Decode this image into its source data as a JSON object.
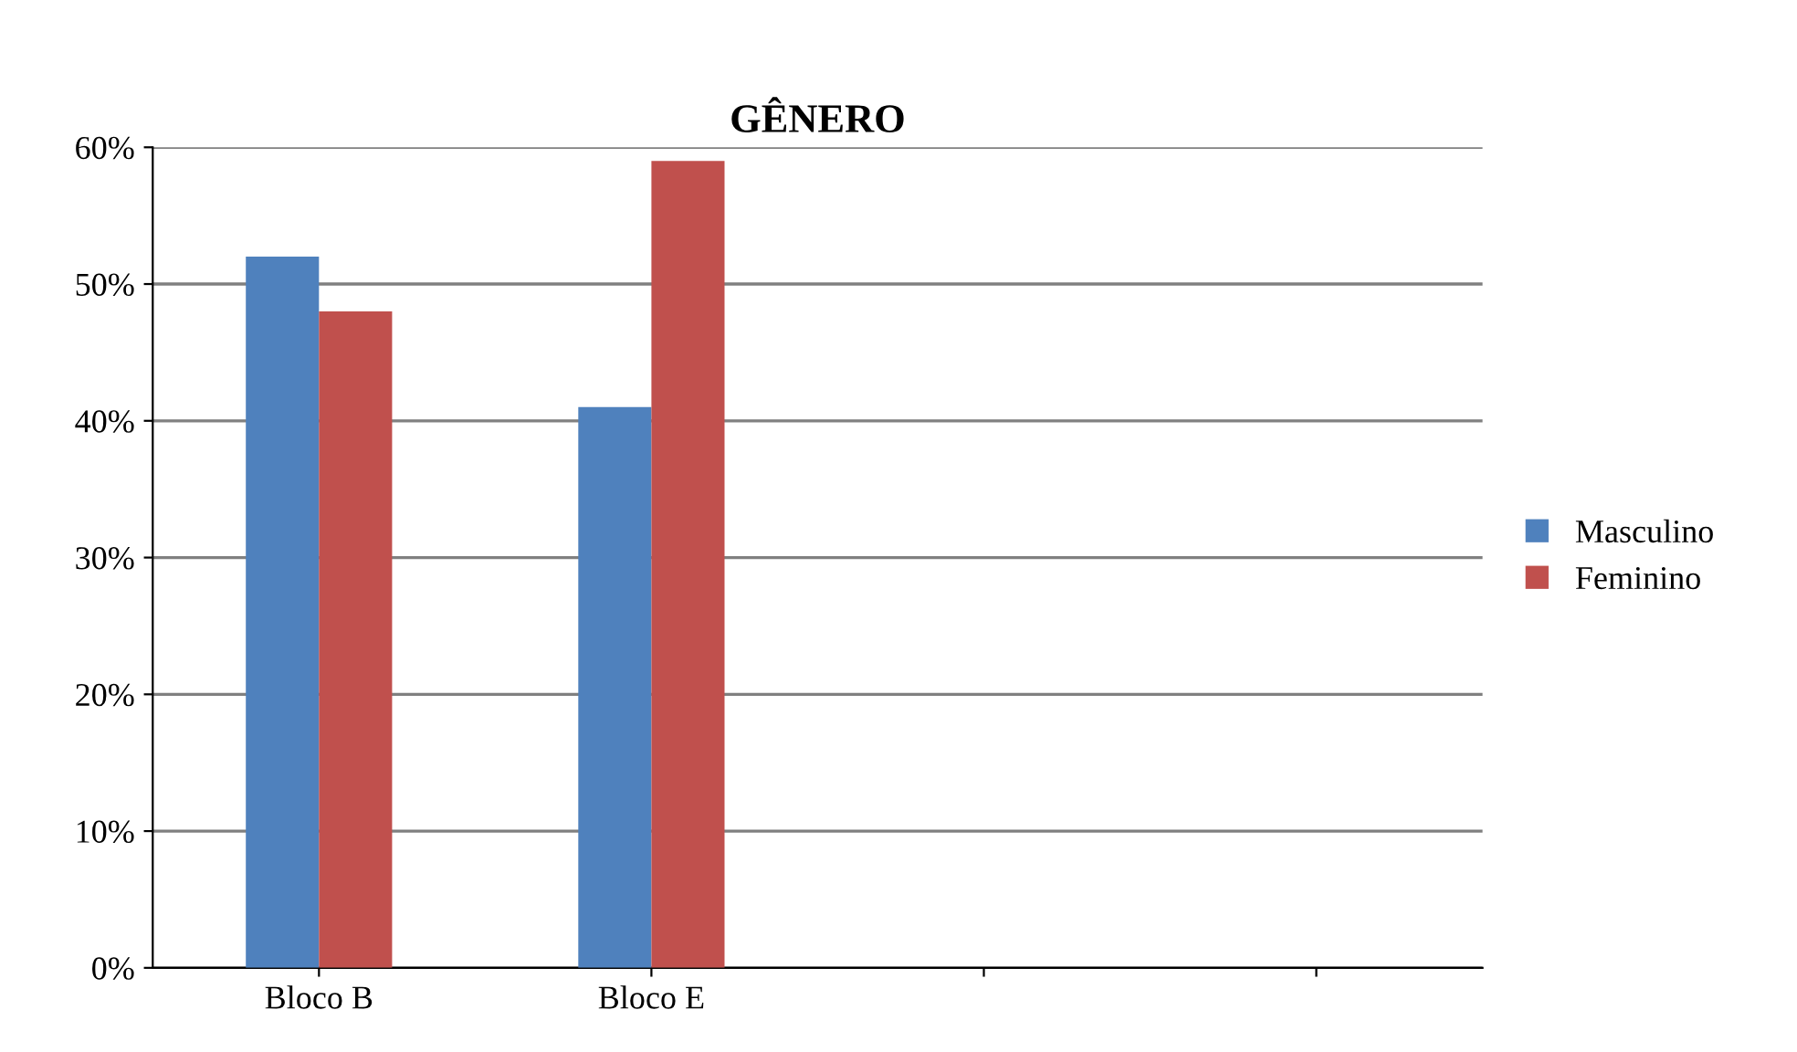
{
  "chart_data": {
    "type": "bar",
    "title": "GÊNERO",
    "categories": [
      "Bloco B",
      "Bloco E",
      null,
      null
    ],
    "series": [
      {
        "name": "Masculino",
        "color": "#4f81bd",
        "values": [
          52,
          41,
          null,
          null
        ]
      },
      {
        "name": "Feminino",
        "color": "#c0504d",
        "values": [
          48,
          59,
          null,
          null
        ]
      }
    ],
    "ylim": [
      0,
      60
    ],
    "yticks": [
      {
        "value": 0,
        "label": "0%"
      },
      {
        "value": 10,
        "label": "10%"
      },
      {
        "value": 20,
        "label": "20%"
      },
      {
        "value": 30,
        "label": "30%"
      },
      {
        "value": 40,
        "label": "40%"
      },
      {
        "value": 50,
        "label": "50%"
      },
      {
        "value": 60,
        "label": "60%"
      }
    ],
    "grid": "y",
    "legend": "right"
  }
}
